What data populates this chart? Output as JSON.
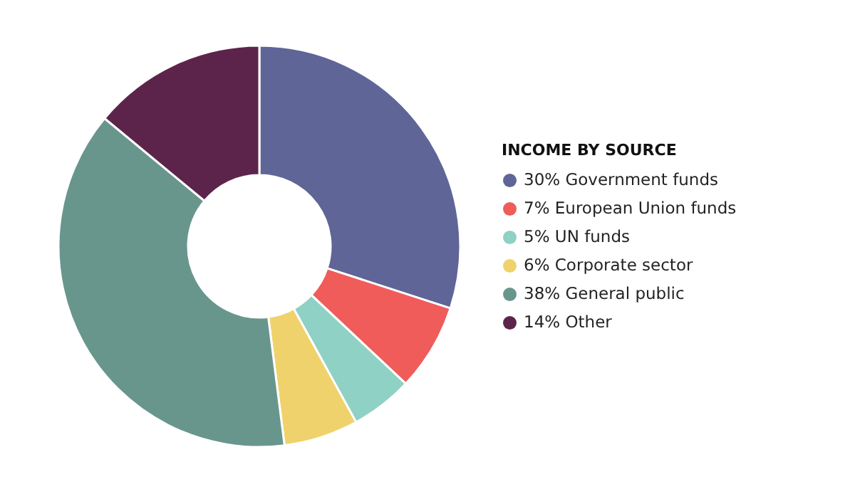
{
  "chart_data": {
    "type": "donut",
    "legend_title": "INCOME BY SOURCE",
    "categories": [
      "Government funds",
      "European Union funds",
      "UN funds",
      "Corporate sector",
      "General public",
      "Other"
    ],
    "values": [
      30,
      7,
      5,
      6,
      38,
      14
    ],
    "colors": [
      "#5f6597",
      "#ef5c5a",
      "#8fd1c4",
      "#f0d26c",
      "#68968d",
      "#5d244b"
    ],
    "value_labels": [
      "30%",
      "7%",
      "5%",
      "6%",
      "38%",
      "14%"
    ],
    "legend": "right"
  }
}
